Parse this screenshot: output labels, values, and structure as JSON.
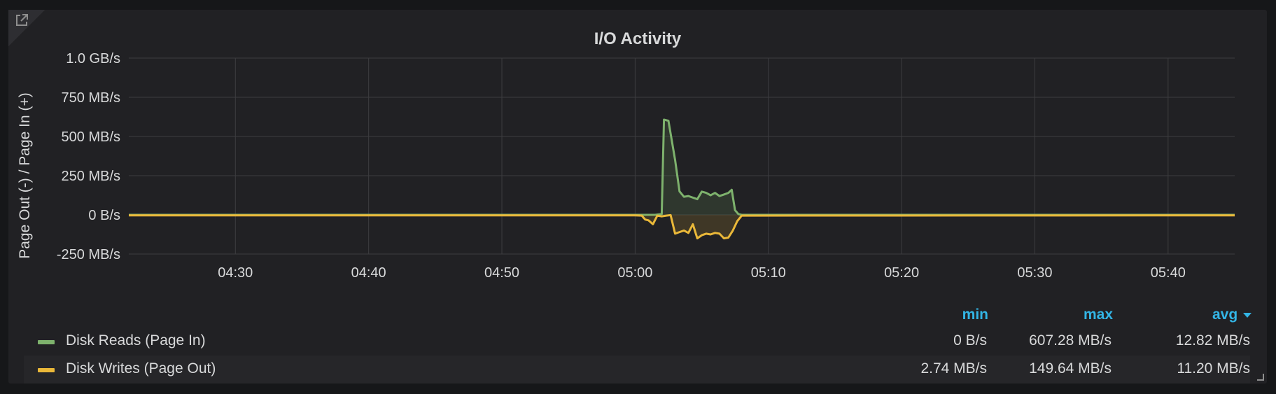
{
  "panel": {
    "title": "I/O Activity",
    "link_icon": "external-link-icon"
  },
  "legend": {
    "columns": {
      "min": "min",
      "max": "max",
      "avg": "avg"
    },
    "sort_icon": "caret-down-icon",
    "rows": [
      {
        "name": "Disk Reads (Page In)",
        "color": "#7eb26d",
        "min": "0 B/s",
        "max": "607.28 MB/s",
        "avg": "12.82 MB/s"
      },
      {
        "name": "Disk Writes (Page Out)",
        "color": "#eab839",
        "min": "2.74 MB/s",
        "max": "149.64 MB/s",
        "avg": "11.20 MB/s"
      }
    ]
  },
  "chart_data": {
    "type": "area",
    "title": "I/O Activity",
    "ylabel": "Page Out (-) / Page In (+)",
    "xlabel": "",
    "y_unit": "MB/s",
    "ylim": [
      -250,
      1000
    ],
    "yticks": [
      {
        "value": 1000,
        "label": "1.0 GB/s"
      },
      {
        "value": 750,
        "label": "750 MB/s"
      },
      {
        "value": 500,
        "label": "500 MB/s"
      },
      {
        "value": 250,
        "label": "250 MB/s"
      },
      {
        "value": 0,
        "label": "0 B/s"
      },
      {
        "value": -250,
        "label": "-250 MB/s"
      }
    ],
    "x_unit": "minutes",
    "xlim": [
      "04:22",
      "04:45"
    ],
    "xticks": [
      "04:30",
      "04:40",
      "04:50",
      "05:00",
      "05:10",
      "05:20",
      "05:30",
      "05:40"
    ],
    "grid": true,
    "legend_position": "bottom",
    "series": [
      {
        "name": "Disk Reads (Page In)",
        "color": "#7eb26d",
        "points": [
          [
            "04:22",
            0
          ],
          [
            "05:01",
            0
          ],
          [
            "05:01:30",
            0
          ],
          [
            "05:02:00",
            5
          ],
          [
            "05:02:10",
            607
          ],
          [
            "05:02:30",
            600
          ],
          [
            "05:03:00",
            350
          ],
          [
            "05:03:20",
            150
          ],
          [
            "05:03:40",
            115
          ],
          [
            "05:04:00",
            120
          ],
          [
            "05:04:20",
            110
          ],
          [
            "05:04:40",
            100
          ],
          [
            "05:05:00",
            148
          ],
          [
            "05:05:20",
            140
          ],
          [
            "05:05:40",
            125
          ],
          [
            "05:06:00",
            140
          ],
          [
            "05:06:20",
            120
          ],
          [
            "05:06:40",
            130
          ],
          [
            "05:07:00",
            140
          ],
          [
            "05:07:15",
            160
          ],
          [
            "05:07:30",
            30
          ],
          [
            "05:07:45",
            5
          ],
          [
            "05:08:00",
            0
          ],
          [
            "05:45",
            0
          ]
        ]
      },
      {
        "name": "Disk Writes (Page Out)",
        "color": "#eab839",
        "points": [
          [
            "04:22",
            -3
          ],
          [
            "05:00",
            -3
          ],
          [
            "05:00:30",
            -5
          ],
          [
            "05:00:45",
            -30
          ],
          [
            "05:01:00",
            -35
          ],
          [
            "05:01:20",
            -60
          ],
          [
            "05:01:40",
            -5
          ],
          [
            "05:02:00",
            -10
          ],
          [
            "05:02:20",
            -5
          ],
          [
            "05:02:40",
            -2
          ],
          [
            "05:03:00",
            -120
          ],
          [
            "05:03:20",
            -110
          ],
          [
            "05:03:40",
            -100
          ],
          [
            "05:04:00",
            -115
          ],
          [
            "05:04:20",
            -60
          ],
          [
            "05:04:40",
            -150
          ],
          [
            "05:05:00",
            -130
          ],
          [
            "05:05:20",
            -120
          ],
          [
            "05:05:40",
            -125
          ],
          [
            "05:06:00",
            -115
          ],
          [
            "05:06:20",
            -120
          ],
          [
            "05:06:40",
            -150
          ],
          [
            "05:07:00",
            -145
          ],
          [
            "05:07:20",
            -100
          ],
          [
            "05:07:40",
            -40
          ],
          [
            "05:08:00",
            -5
          ],
          [
            "05:45",
            -3
          ]
        ]
      }
    ]
  }
}
